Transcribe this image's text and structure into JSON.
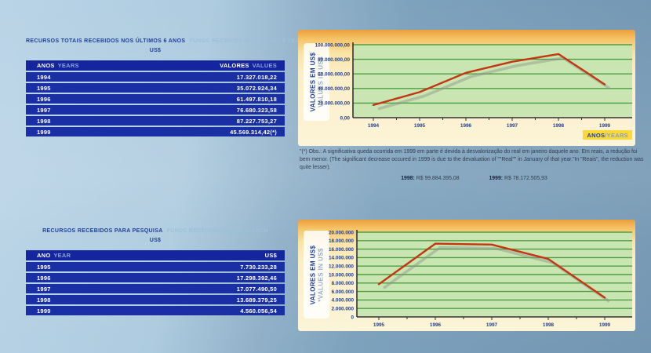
{
  "table1": {
    "title_pt": "RECURSOS TOTAIS RECEBIDOS NOS ÚLTIMOS 6 ANOS",
    "title_en": "FUNDS RECEIVED IN THE LAST 6 YEARS",
    "currency": "US$",
    "col1_pt": "ANOS",
    "col1_en": "YEARS",
    "col2_pt": "VALORES",
    "col2_en": "VALUES",
    "rows": [
      {
        "year": "1994",
        "value": "17.327.018,22"
      },
      {
        "year": "1995",
        "value": "35.072.924,34"
      },
      {
        "year": "1996",
        "value": "61.497.810,18"
      },
      {
        "year": "1997",
        "value": "76.680.323,58"
      },
      {
        "year": "1998",
        "value": "87.227.753,27"
      },
      {
        "year": "1999",
        "value": "45.569.314,42(*)"
      }
    ]
  },
  "table2": {
    "title_pt": "RECURSOS RECEBIDOS PARA PESQUISA",
    "title_en": "FUNDS RECEIVED FOR RESEARCH",
    "currency": "US$",
    "col1_pt": "ANO",
    "col1_en": "YEAR",
    "col2_pt": "US$",
    "col2_en": "",
    "rows": [
      {
        "year": "1995",
        "value": "7.730.233,28"
      },
      {
        "year": "1996",
        "value": "17.298.392,46"
      },
      {
        "year": "1997",
        "value": "17.077.490,50"
      },
      {
        "year": "1998",
        "value": "13.689.379,25"
      },
      {
        "year": "1999",
        "value": "4.560.056,54"
      }
    ]
  },
  "note": {
    "text": "\"(*) Obs.: A significativa queda ocorrida em 1999 em parte é devida à desvalorização do real em janeiro daquele ano. Em reais, a redução foi bem menor.  (The significant decrease occured in 1999 is due to the devaluation of \"\"Real\"\" in January of that year.\"In \"Reais\", the reduction was quite lesser).",
    "y1998_label": "1998:",
    "y1998_value": "R$ 99.884.395,08",
    "y1999_label": "1999:",
    "y1999_value": "R$ 78.172.505,93"
  },
  "chart_data": [
    {
      "type": "line",
      "title": "Recursos totais recebidos nos últimos 6 anos (US$)",
      "categories": [
        "1994",
        "1995",
        "1996",
        "1997",
        "1998",
        "1999"
      ],
      "values": [
        17327018.22,
        35072924.34,
        61497810.18,
        76680323.58,
        87227753.27,
        45569314.42
      ],
      "ylim": [
        0,
        100000000
      ],
      "y_ticks": [
        "100.000.000,00",
        "80.000.000,00",
        "60.000.000,00",
        "40.000.000,00",
        "20.000.000,00",
        "0,00"
      ],
      "ylabel_pt": "VALORES EM US$",
      "ylabel_en": "VALUES IN US$",
      "xlabel_pt": "ANOS",
      "xlabel_en": "/YEARS",
      "grid": "horizontal",
      "legend": "none",
      "line_color": "#c43512",
      "shadow_color": "#8d9289",
      "grid_color": "#4e9e40",
      "plot_bg": "#c9e6b2",
      "axis_color": "#333333"
    },
    {
      "type": "line",
      "title": "Recursos recebidos para pesquisa (US$)",
      "categories": [
        "1995",
        "1996",
        "1997",
        "1998",
        "1999"
      ],
      "values": [
        7730233.28,
        17298392.46,
        17077490.5,
        13689379.25,
        4560056.54
      ],
      "ylim": [
        0,
        20000000
      ],
      "y_ticks": [
        "20.000.000",
        "18.000.000",
        "16.000.000",
        "14.000.000",
        "12.000.000",
        "10.000.000",
        "8.000.000",
        "6.000.000",
        "4.000.000",
        "2.000.000",
        "0"
      ],
      "ylabel_pt": "VALORES EM US$",
      "ylabel_en": "*VALUES IN US$",
      "xlabel_pt": "",
      "xlabel_en": "",
      "grid": "horizontal",
      "legend": "none",
      "line_color": "#c43512",
      "shadow_color": "#8d9289",
      "grid_color": "#4e9e40",
      "plot_bg": "#c9e6b2",
      "axis_color": "#333333"
    }
  ]
}
